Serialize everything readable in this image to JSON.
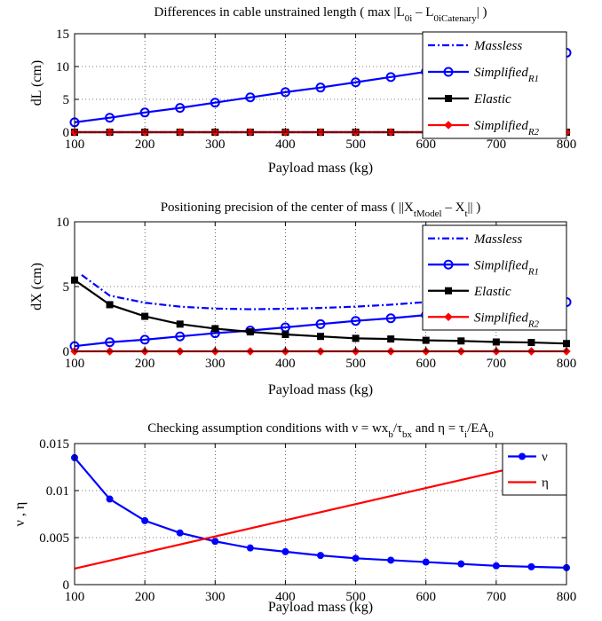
{
  "chart_data": [
    {
      "type": "line",
      "title": "Differences in cable unstrained length ( max |L_0i – L_0iCatenary| )",
      "title_parts": [
        "Differences in cable unstrained length ( max |L",
        "0i",
        " – L",
        "0iCatenary",
        "| )"
      ],
      "xlabel": "Payload mass (kg)",
      "ylabel": "dL (cm)",
      "xlim": [
        100,
        800
      ],
      "ylim": [
        0,
        15
      ],
      "xticks": [
        100,
        200,
        300,
        400,
        500,
        600,
        700,
        800
      ],
      "yticks": [
        0,
        5,
        10,
        15
      ],
      "grid": true,
      "legend_position": "top-right",
      "series": [
        {
          "name": "Massless",
          "sub": "",
          "color": "#0000ff",
          "dash": "8,3,2,3",
          "marker": "none",
          "x": [
            100,
            800
          ],
          "y": [
            0,
            0
          ]
        },
        {
          "name": "Simplified",
          "sub": "R1",
          "color": "#0000ff",
          "dash": "",
          "marker": "circle",
          "x": [
            100,
            150,
            200,
            250,
            300,
            350,
            400,
            450,
            500,
            550,
            600,
            650,
            700,
            750,
            800
          ],
          "y": [
            1.5,
            2.2,
            3.0,
            3.7,
            4.5,
            5.3,
            6.1,
            6.8,
            7.6,
            8.4,
            9.2,
            10.0,
            10.7,
            11.5,
            12.1
          ]
        },
        {
          "name": "Elastic",
          "sub": "",
          "color": "#000000",
          "dash": "",
          "marker": "square",
          "x": [
            100,
            150,
            200,
            250,
            300,
            350,
            400,
            450,
            500,
            550,
            600,
            650,
            700,
            750,
            800
          ],
          "y": [
            0,
            0,
            0,
            0,
            0,
            0,
            0,
            0,
            0,
            0,
            0,
            0,
            0,
            0,
            0
          ]
        },
        {
          "name": "Simplified",
          "sub": "R2",
          "color": "#ff0000",
          "dash": "",
          "marker": "diamond",
          "x": [
            100,
            150,
            200,
            250,
            300,
            350,
            400,
            450,
            500,
            550,
            600,
            650,
            700,
            750,
            800
          ],
          "y": [
            0,
            0,
            0,
            0,
            0,
            0,
            0,
            0,
            0,
            0,
            0,
            0,
            0,
            0,
            0
          ]
        }
      ]
    },
    {
      "type": "line",
      "title": "Positioning precision of the center of mass ( ||X_tModel – X_t|| )",
      "title_parts": [
        "Positioning precision of the center of mass ( ||X",
        "tModel",
        " – X",
        "t",
        "|| )"
      ],
      "xlabel": "Payload mass (kg)",
      "ylabel": "dX (cm)",
      "xlim": [
        100,
        800
      ],
      "ylim": [
        0,
        10
      ],
      "xticks": [
        100,
        200,
        300,
        400,
        500,
        600,
        700,
        800
      ],
      "yticks": [
        0,
        5,
        10
      ],
      "grid": true,
      "legend_position": "top-right",
      "series": [
        {
          "name": "Massless",
          "sub": "",
          "color": "#0000ff",
          "dash": "8,3,2,3",
          "marker": "none",
          "x": [
            110,
            150,
            200,
            250,
            300,
            350,
            400,
            450,
            500,
            550,
            600,
            650,
            700
          ],
          "y": [
            5.9,
            4.3,
            3.75,
            3.45,
            3.3,
            3.25,
            3.28,
            3.35,
            3.45,
            3.6,
            3.8,
            4.0,
            4.2
          ]
        },
        {
          "name": "Simplified",
          "sub": "R1",
          "color": "#0000ff",
          "dash": "",
          "marker": "circle",
          "x": [
            100,
            150,
            200,
            250,
            300,
            350,
            400,
            450,
            500,
            550,
            600,
            650,
            700,
            750,
            800
          ],
          "y": [
            0.4,
            0.7,
            0.9,
            1.15,
            1.4,
            1.6,
            1.85,
            2.1,
            2.35,
            2.55,
            2.8,
            3.05,
            3.3,
            3.55,
            3.8
          ]
        },
        {
          "name": "Elastic",
          "sub": "",
          "color": "#000000",
          "dash": "",
          "marker": "square",
          "x": [
            100,
            150,
            200,
            250,
            300,
            350,
            400,
            450,
            500,
            550,
            600,
            650,
            700,
            750,
            800
          ],
          "y": [
            5.5,
            3.6,
            2.7,
            2.1,
            1.75,
            1.5,
            1.3,
            1.15,
            1.0,
            0.95,
            0.85,
            0.8,
            0.72,
            0.68,
            0.6
          ]
        },
        {
          "name": "Simplified",
          "sub": "R2",
          "color": "#ff0000",
          "dash": "",
          "marker": "diamond",
          "x": [
            100,
            150,
            200,
            250,
            300,
            350,
            400,
            450,
            500,
            550,
            600,
            650,
            700,
            750,
            800
          ],
          "y": [
            0,
            0,
            0,
            0,
            0,
            0,
            0,
            0,
            0,
            0,
            0,
            0,
            0,
            0,
            0
          ]
        }
      ]
    },
    {
      "type": "line",
      "title": "Checking assumption conditions with ν = wx_b/τ_bx and η = τ_i/EA_0",
      "title_parts": [
        "Checking assumption conditions with ν = wx",
        "b",
        "/τ",
        "bx",
        " and η = τ",
        "i",
        "/EA",
        "0",
        ""
      ],
      "xlabel": "Payload mass (kg)",
      "ylabel": "ν , η",
      "xlim": [
        100,
        800
      ],
      "ylim": [
        0,
        0.015
      ],
      "xticks": [
        100,
        200,
        300,
        400,
        500,
        600,
        700,
        800
      ],
      "yticks": [
        0,
        0.005,
        0.01,
        0.015
      ],
      "ytick_labels": [
        "0",
        "0.005",
        "0.01",
        "0.015"
      ],
      "grid": true,
      "legend_position": "top-right",
      "series": [
        {
          "name": "ν",
          "sub": "",
          "color": "#0000ff",
          "dash": "",
          "marker": "dot",
          "x": [
            100,
            150,
            200,
            250,
            300,
            350,
            400,
            450,
            500,
            550,
            600,
            650,
            700,
            750,
            800
          ],
          "y": [
            0.0135,
            0.0091,
            0.0068,
            0.0055,
            0.0046,
            0.0039,
            0.0035,
            0.0031,
            0.0028,
            0.0026,
            0.0024,
            0.0022,
            0.002,
            0.0019,
            0.0018
          ]
        },
        {
          "name": "η",
          "sub": "",
          "color": "#ff0000",
          "dash": "",
          "marker": "none",
          "x": [
            100,
            800
          ],
          "y": [
            0.0017,
            0.0137
          ]
        }
      ]
    }
  ]
}
